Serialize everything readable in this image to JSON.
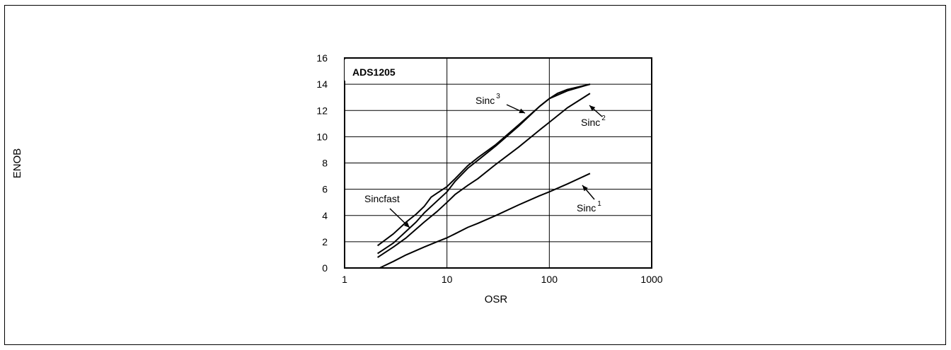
{
  "chart_data": {
    "type": "line",
    "title": "",
    "inset_label": "ADS1205",
    "xlabel": "OSR",
    "ylabel": "ENOB",
    "x_scale": "log",
    "xlim": [
      1,
      1000
    ],
    "ylim": [
      0,
      16
    ],
    "x_ticks": [
      "1",
      "10",
      "100",
      "1000"
    ],
    "y_ticks": [
      "0",
      "2",
      "4",
      "6",
      "8",
      "10",
      "12",
      "14",
      "16"
    ],
    "grid": true,
    "series": [
      {
        "name": "Sincfast",
        "x": [
          2.1,
          3,
          4,
          5,
          6,
          7,
          8,
          10,
          12,
          16,
          20,
          30,
          50,
          80,
          100,
          150,
          250
        ],
        "y": [
          1.7,
          2.6,
          3.5,
          4.1,
          4.7,
          5.4,
          5.7,
          6.2,
          6.8,
          7.8,
          8.4,
          9.4,
          10.9,
          12.3,
          12.9,
          13.5,
          14.0
        ]
      },
      {
        "name": "Sinc",
        "superscript": "3",
        "x": [
          2.1,
          3,
          4,
          5,
          6,
          8,
          10,
          12,
          16,
          20,
          30,
          50,
          80,
          100,
          120,
          150,
          250
        ],
        "y": [
          1.1,
          1.9,
          2.8,
          3.5,
          4.2,
          5.1,
          5.8,
          6.6,
          7.6,
          8.2,
          9.3,
          10.8,
          12.3,
          12.9,
          13.3,
          13.6,
          14.0
        ]
      },
      {
        "name": "Sinc",
        "superscript": "2",
        "x": [
          2.1,
          3,
          4,
          6,
          8,
          10,
          12,
          16,
          20,
          30,
          50,
          80,
          100,
          150,
          250
        ],
        "y": [
          0.8,
          1.6,
          2.3,
          3.5,
          4.3,
          5.0,
          5.6,
          6.3,
          6.8,
          7.9,
          9.2,
          10.5,
          11.1,
          12.2,
          13.3
        ]
      },
      {
        "name": "Sinc",
        "superscript": "1",
        "x": [
          2.2,
          3,
          4,
          6,
          8,
          10,
          12,
          16,
          20,
          30,
          50,
          80,
          100,
          150,
          250
        ],
        "y": [
          0.0,
          0.5,
          1.0,
          1.6,
          2.0,
          2.3,
          2.6,
          3.1,
          3.4,
          4.0,
          4.8,
          5.5,
          5.8,
          6.4,
          7.2
        ]
      }
    ],
    "annotations": [
      {
        "text": "Sincfast",
        "superscript": ""
      },
      {
        "text": "Sinc",
        "superscript": "3"
      },
      {
        "text": "Sinc",
        "superscript": "2"
      },
      {
        "text": "Sinc",
        "superscript": "1"
      }
    ]
  }
}
